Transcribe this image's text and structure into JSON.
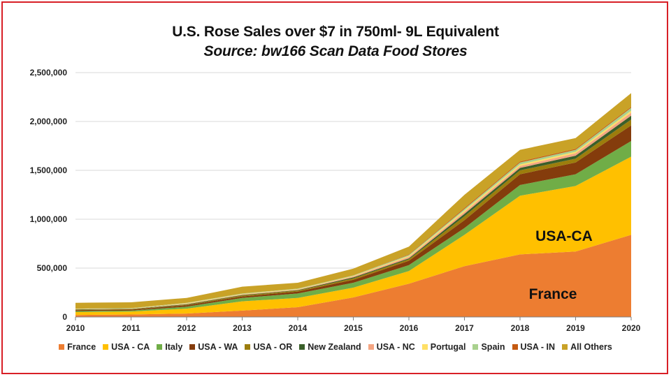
{
  "chart_data": {
    "type": "area",
    "stacked": true,
    "title": "U.S. Rose Sales over $7 in 750ml- 9L Equivalent",
    "subtitle": "Source: bw166 Scan Data Food Stores",
    "x": [
      2010,
      2011,
      2012,
      2013,
      2014,
      2015,
      2016,
      2017,
      2018,
      2019,
      2020
    ],
    "x_tick_labels": [
      "2010",
      "2011",
      "2012",
      "2013",
      "2014",
      "2015",
      "2016",
      "2017",
      "2018",
      "2019",
      "2020"
    ],
    "ylim": [
      0,
      2500000
    ],
    "y_ticks": [
      0,
      500000,
      1000000,
      1500000,
      2000000,
      2500000
    ],
    "y_tick_labels": [
      "0",
      "500,000",
      "1,000,000",
      "1,500,000",
      "2,000,000",
      "2,500,000"
    ],
    "grid": true,
    "legend_position": "bottom",
    "series": [
      {
        "name": "France",
        "color": "#ED7D31",
        "values": [
          20000,
          25000,
          35000,
          65000,
          100000,
          200000,
          340000,
          520000,
          640000,
          670000,
          840000
        ]
      },
      {
        "name": "USA - CA",
        "color": "#FFC000",
        "values": [
          30000,
          30000,
          50000,
          95000,
          95000,
          100000,
          130000,
          320000,
          600000,
          670000,
          800000
        ]
      },
      {
        "name": "Italy",
        "color": "#70AD47",
        "values": [
          10000,
          10000,
          20000,
          35000,
          45000,
          50000,
          60000,
          70000,
          110000,
          120000,
          160000
        ]
      },
      {
        "name": "USA - WA",
        "color": "#843C0C",
        "values": [
          10000,
          10000,
          15000,
          15000,
          20000,
          30000,
          45000,
          80000,
          110000,
          120000,
          160000
        ]
      },
      {
        "name": "USA - OR",
        "color": "#9C7D0C",
        "values": [
          5000,
          5000,
          5000,
          10000,
          10000,
          15000,
          15000,
          40000,
          40000,
          40000,
          60000
        ]
      },
      {
        "name": "New Zealand",
        "color": "#3A5F2A",
        "values": [
          3000,
          3000,
          5000,
          5000,
          5000,
          10000,
          10000,
          25000,
          25000,
          30000,
          40000
        ]
      },
      {
        "name": "USA - NC",
        "color": "#F4A582",
        "values": [
          2000,
          2000,
          5000,
          5000,
          5000,
          10000,
          15000,
          20000,
          20000,
          25000,
          30000
        ]
      },
      {
        "name": "Portugal",
        "color": "#FFE066",
        "values": [
          2000,
          2000,
          5000,
          5000,
          5000,
          5000,
          10000,
          15000,
          15000,
          15000,
          20000
        ]
      },
      {
        "name": "Spain",
        "color": "#A9D18E",
        "values": [
          3000,
          3000,
          5000,
          5000,
          5000,
          5000,
          10000,
          15000,
          20000,
          20000,
          30000
        ]
      },
      {
        "name": "USA - IN",
        "color": "#C55A11",
        "values": [
          0,
          0,
          0,
          0,
          0,
          0,
          5000,
          10000,
          10000,
          10000,
          10000
        ]
      },
      {
        "name": "All Others",
        "color": "#C9A227",
        "values": [
          60000,
          60000,
          50000,
          70000,
          60000,
          70000,
          80000,
          135000,
          120000,
          110000,
          140000
        ]
      }
    ],
    "annotations": [
      "USA-CA",
      "France"
    ]
  }
}
